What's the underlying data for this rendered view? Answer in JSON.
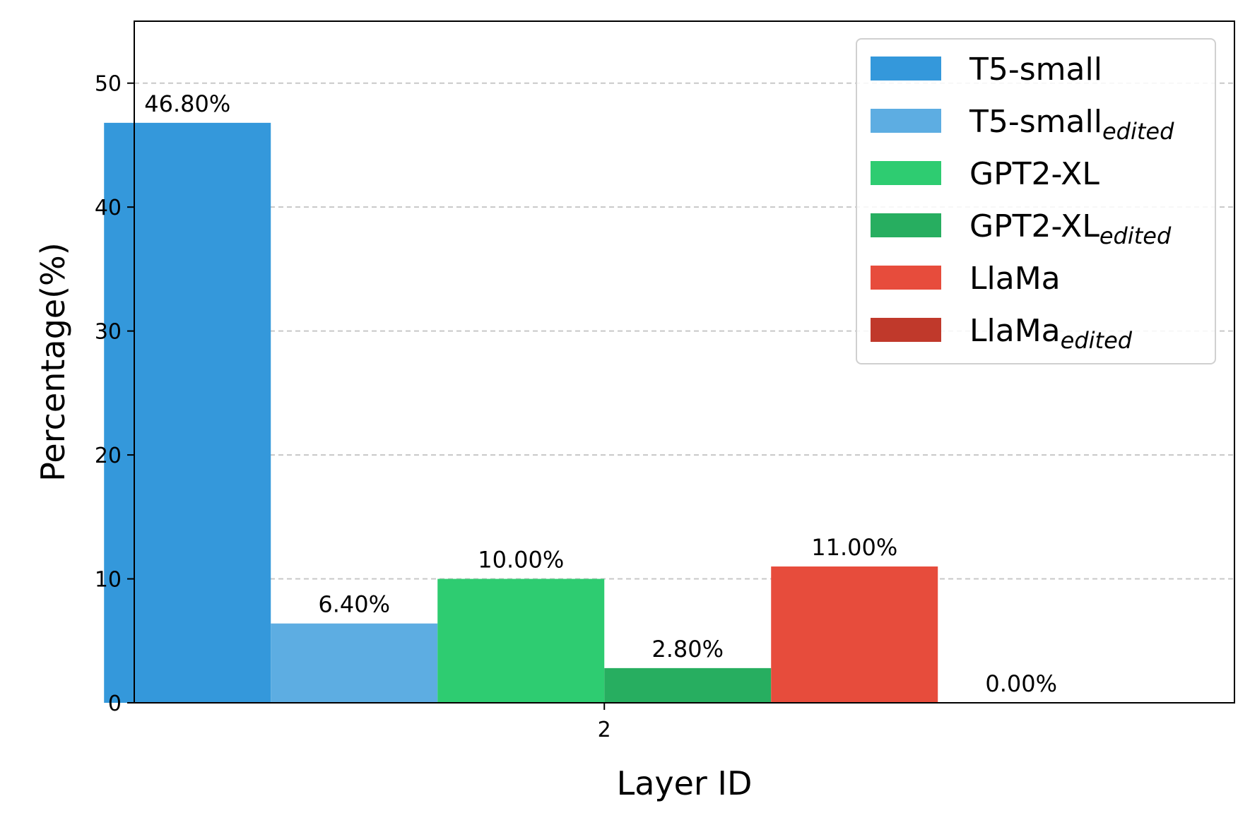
{
  "chart_data": {
    "type": "bar",
    "categories": [
      "2"
    ],
    "series": [
      {
        "name": "T5-small",
        "name_sub": "",
        "values": [
          46.8
        ],
        "label": "46.80%",
        "color": "#3498db"
      },
      {
        "name": "T5-small",
        "name_sub": "edited",
        "values": [
          6.4
        ],
        "label": "6.40%",
        "color": "#5dade2"
      },
      {
        "name": "GPT2-XL",
        "name_sub": "",
        "values": [
          10.0
        ],
        "label": "10.00%",
        "color": "#2ecc71"
      },
      {
        "name": "GPT2-XL",
        "name_sub": "edited",
        "values": [
          2.8
        ],
        "label": "2.80%",
        "color": "#27ae60"
      },
      {
        "name": "LlaMa",
        "name_sub": "",
        "values": [
          11.0
        ],
        "label": "11.00%",
        "color": "#e74c3c"
      },
      {
        "name": "LlaMa",
        "name_sub": "edited",
        "values": [
          0.0
        ],
        "label": "0.00%",
        "color": "#c0392b"
      }
    ],
    "title": "",
    "xlabel": "Layer ID",
    "ylabel": "Percentage(%)",
    "ylim": [
      0,
      55
    ],
    "yticks": [
      "0",
      "10",
      "20",
      "30",
      "40",
      "50"
    ],
    "grid": "y-dashed",
    "legend": "top-right"
  }
}
